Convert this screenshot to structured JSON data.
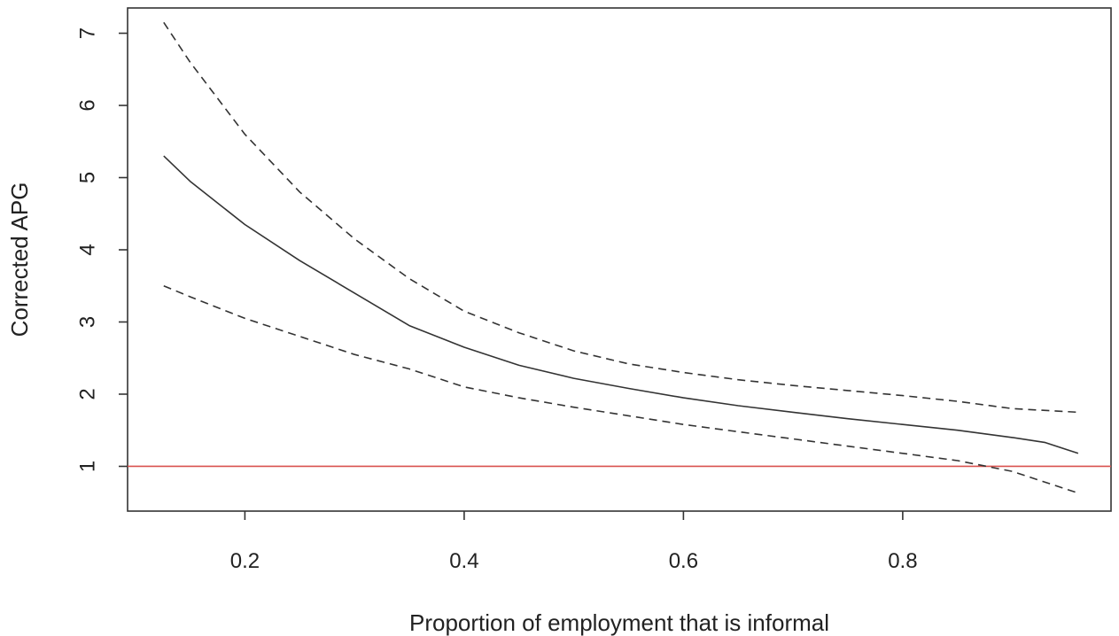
{
  "chart_data": {
    "type": "line",
    "title": "",
    "xlabel": "Proportion of employment that is informal",
    "ylabel": "Corrected APG",
    "xlim": [
      0.093,
      0.99
    ],
    "ylim": [
      0.38,
      7.35
    ],
    "x_ticks": [
      0.2,
      0.4,
      0.6,
      0.8
    ],
    "x_tick_labels": [
      "0.2",
      "0.4",
      "0.6",
      "0.8"
    ],
    "y_ticks": [
      1,
      2,
      3,
      4,
      5,
      6,
      7
    ],
    "y_tick_labels": [
      "1",
      "2",
      "3",
      "4",
      "5",
      "6",
      "7"
    ],
    "grid": false,
    "legend": "none",
    "reference_line": {
      "y": 1,
      "color": "#d9534f"
    },
    "series": [
      {
        "style": "dashed",
        "color": "#333333",
        "points": [
          [
            0.126,
            7.15
          ],
          [
            0.15,
            6.6
          ],
          [
            0.2,
            5.6
          ],
          [
            0.25,
            4.8
          ],
          [
            0.3,
            4.15
          ],
          [
            0.35,
            3.6
          ],
          [
            0.4,
            3.15
          ],
          [
            0.45,
            2.85
          ],
          [
            0.5,
            2.6
          ],
          [
            0.55,
            2.42
          ],
          [
            0.6,
            2.3
          ],
          [
            0.65,
            2.2
          ],
          [
            0.7,
            2.12
          ],
          [
            0.75,
            2.05
          ],
          [
            0.8,
            1.98
          ],
          [
            0.85,
            1.9
          ],
          [
            0.9,
            1.8
          ],
          [
            0.96,
            1.75
          ]
        ]
      },
      {
        "style": "solid",
        "color": "#333333",
        "points": [
          [
            0.126,
            5.3
          ],
          [
            0.15,
            4.95
          ],
          [
            0.2,
            4.35
          ],
          [
            0.25,
            3.85
          ],
          [
            0.3,
            3.4
          ],
          [
            0.35,
            2.95
          ],
          [
            0.4,
            2.65
          ],
          [
            0.45,
            2.4
          ],
          [
            0.5,
            2.22
          ],
          [
            0.55,
            2.08
          ],
          [
            0.6,
            1.95
          ],
          [
            0.65,
            1.84
          ],
          [
            0.7,
            1.75
          ],
          [
            0.75,
            1.66
          ],
          [
            0.8,
            1.58
          ],
          [
            0.85,
            1.5
          ],
          [
            0.9,
            1.4
          ],
          [
            0.93,
            1.33
          ],
          [
            0.96,
            1.18
          ]
        ]
      },
      {
        "style": "dashed",
        "color": "#333333",
        "points": [
          [
            0.126,
            3.5
          ],
          [
            0.15,
            3.35
          ],
          [
            0.2,
            3.05
          ],
          [
            0.25,
            2.8
          ],
          [
            0.3,
            2.55
          ],
          [
            0.35,
            2.35
          ],
          [
            0.4,
            2.1
          ],
          [
            0.45,
            1.95
          ],
          [
            0.5,
            1.82
          ],
          [
            0.55,
            1.7
          ],
          [
            0.6,
            1.58
          ],
          [
            0.65,
            1.48
          ],
          [
            0.7,
            1.38
          ],
          [
            0.75,
            1.28
          ],
          [
            0.8,
            1.18
          ],
          [
            0.85,
            1.08
          ],
          [
            0.9,
            0.93
          ],
          [
            0.96,
            0.63
          ]
        ]
      }
    ]
  }
}
